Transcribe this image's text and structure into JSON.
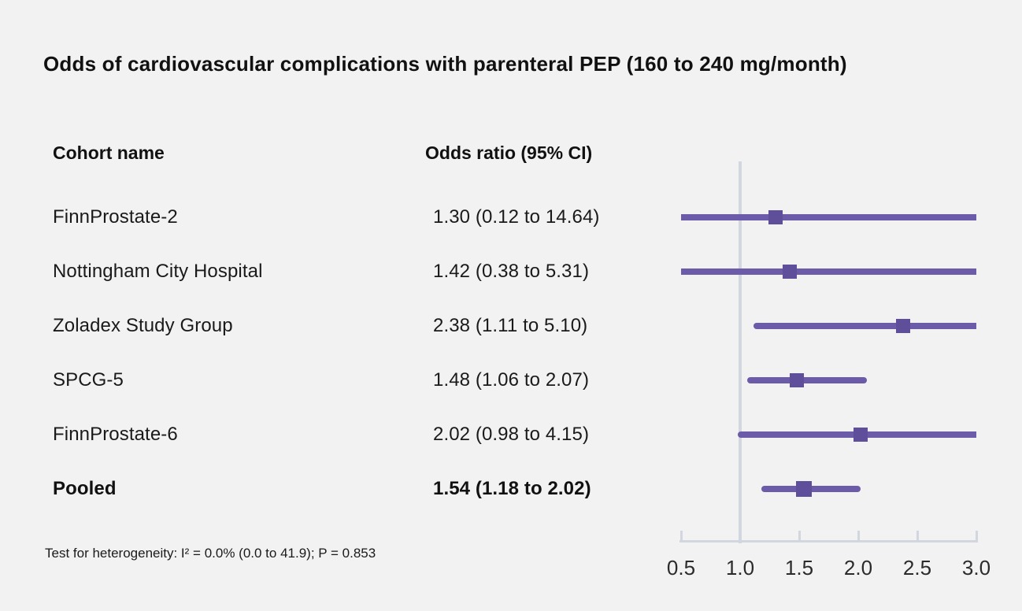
{
  "title": "Odds of cardiovascular complications with parenteral PEP (160 to 240 mg/month)",
  "table": {
    "cohort_header": "Cohort name",
    "or_header": "Odds ratio (95% CI)"
  },
  "footnote": "Test for heterogeneity: I² = 0.0% (0.0 to 41.9); P = 0.853",
  "colors": {
    "background": "#f2f2f2",
    "ci_line": "#6c5ba8",
    "marker": "#5f4e9a",
    "axis": "#d2d6de",
    "text": "#1a1a1a"
  },
  "chart_data": {
    "type": "forest",
    "title": "Odds of cardiovascular complications with parenteral PEP (160 to 240 mg/month)",
    "x_scale": "odds ratio",
    "xlim": [
      0.5,
      3.0
    ],
    "x_ticks": [
      0.5,
      1.0,
      1.5,
      2.0,
      2.5,
      3.0
    ],
    "tick_labels": [
      "0.5",
      "1.0",
      "1.5",
      "2.0",
      "2.5",
      "3.0"
    ],
    "reference_line": 1.0,
    "rows": [
      {
        "name": "FinnProstate-2",
        "or": 1.3,
        "ci_low": 0.12,
        "ci_high": 14.64,
        "or_text": "1.30 (0.12 to 14.64)",
        "pooled": false
      },
      {
        "name": "Nottingham City Hospital",
        "or": 1.42,
        "ci_low": 0.38,
        "ci_high": 5.31,
        "or_text": "1.42 (0.38 to 5.31)",
        "pooled": false
      },
      {
        "name": "Zoladex Study Group",
        "or": 2.38,
        "ci_low": 1.11,
        "ci_high": 5.1,
        "or_text": "2.38 (1.11 to 5.10)",
        "pooled": false
      },
      {
        "name": "SPCG-5",
        "or": 1.48,
        "ci_low": 1.06,
        "ci_high": 2.07,
        "or_text": "1.48 (1.06 to 2.07)",
        "pooled": false
      },
      {
        "name": "FinnProstate-6",
        "or": 2.02,
        "ci_low": 0.98,
        "ci_high": 4.15,
        "or_text": "2.02 (0.98 to 4.15)",
        "pooled": false
      },
      {
        "name": "Pooled",
        "or": 1.54,
        "ci_low": 1.18,
        "ci_high": 2.02,
        "or_text": "1.54 (1.18 to 2.02)",
        "pooled": true
      }
    ],
    "heterogeneity": {
      "i_squared": "0.0%",
      "ci": "0.0 to 41.9",
      "p_value": "0.853"
    }
  }
}
